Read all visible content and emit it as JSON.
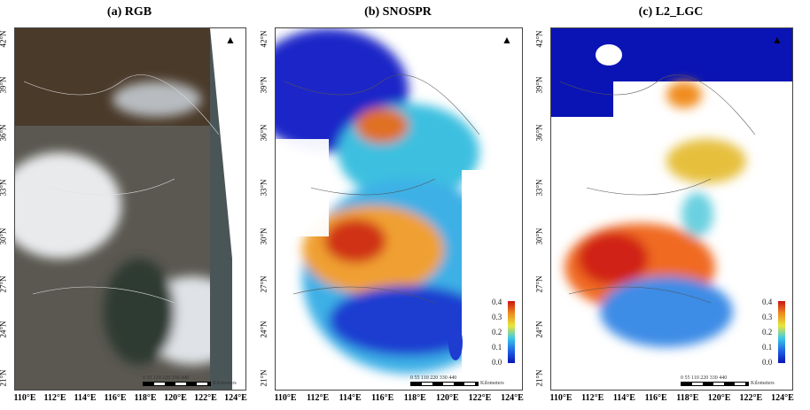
{
  "panels": [
    {
      "title": "(a) RGB"
    },
    {
      "title": "(b) SNOSPR"
    },
    {
      "title": "(c) L2_LGC"
    }
  ],
  "lat_labels": [
    "42°N",
    "39°N",
    "36°N",
    "33°N",
    "30°N",
    "27°N",
    "24°N",
    "21°N"
  ],
  "lon_labels": [
    "110°E",
    "112°E",
    "114°E",
    "116°E",
    "118°E",
    "120°E",
    "122°E",
    "124°E"
  ],
  "colorbar": {
    "ticks": [
      "0.4",
      "0.3",
      "0.2",
      "0.1",
      "0.0"
    ],
    "colors": [
      "#0a14b4",
      "#1e64e6",
      "#3cc8e6",
      "#e6e63c",
      "#f08c1e",
      "#c81414"
    ]
  },
  "scale_bar": {
    "ticks": "0 55 110   220   330   440",
    "unit": "Kilometers"
  },
  "north_arrow": "N"
}
